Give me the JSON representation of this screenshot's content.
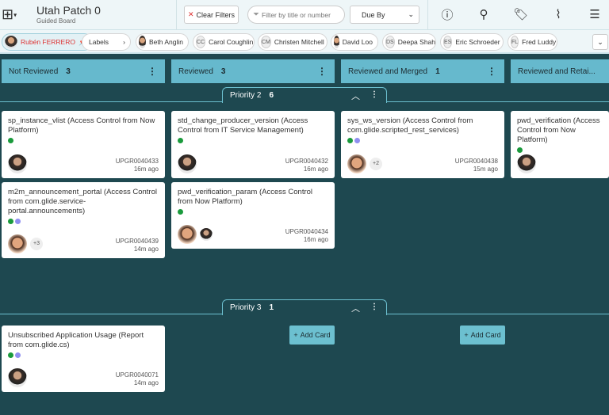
{
  "header": {
    "title": "Utah Patch 0",
    "subtitle": "Guided Board",
    "clear_filters": "Clear Filters",
    "filter_placeholder": "Filter by title or number",
    "sort_value": "Due By",
    "icons": [
      "info-icon",
      "user-icon",
      "tag-icon",
      "activity-icon",
      "sliders-icon"
    ]
  },
  "filters": {
    "current_user": "Rubén FERRERO",
    "labels": "Labels",
    "people": [
      {
        "initials": "",
        "name": "Beth Anglin",
        "photo": true
      },
      {
        "initials": "CC",
        "name": "Carol Coughlin"
      },
      {
        "initials": "CM",
        "name": "Christen Mitchell"
      },
      {
        "initials": "",
        "name": "David Loo",
        "photo": true
      },
      {
        "initials": "DS",
        "name": "Deepa Shah"
      },
      {
        "initials": "ES",
        "name": "Eric Schroeder"
      },
      {
        "initials": "FL",
        "name": "Fred Luddy"
      }
    ]
  },
  "columns": [
    {
      "name": "Not Reviewed",
      "count": "3"
    },
    {
      "name": "Reviewed",
      "count": "3"
    },
    {
      "name": "Reviewed and Merged",
      "count": "1"
    },
    {
      "name": "Reviewed and Retai...",
      "count": ""
    }
  ],
  "lanes": [
    {
      "name": "Priority 2",
      "count": "6",
      "cards": [
        {
          "title": "sp_instance_vlist (Access Control from Now Platform)",
          "dots": [
            "#1a9a3c"
          ],
          "number": "UPGR0040433",
          "time": "16m ago",
          "avatars": [
            "m"
          ],
          "more": ""
        },
        {
          "title": "std_change_producer_version (Access Control from IT Service Management)",
          "dots": [
            "#1a9a3c"
          ],
          "number": "UPGR0040432",
          "time": "16m ago",
          "avatars": [
            "m"
          ],
          "more": ""
        },
        {
          "title": "sys_ws_version (Access Control from com.glide.scripted_rest_services)",
          "dots": [
            "#1a9a3c",
            "#8f8ff0"
          ],
          "number": "UPGR0040438",
          "time": "15m ago",
          "avatars": [
            "f"
          ],
          "more": "+2"
        },
        {
          "title": "pwd_verification (Access Control from Now Platform)",
          "dots": [
            "#1a9a3c"
          ],
          "number": "",
          "time": "",
          "avatars": [
            "m"
          ],
          "more": ""
        },
        {
          "title": "m2m_announcement_portal (Access Control from com.glide.service-portal.announcements)",
          "dots": [
            "#1a9a3c",
            "#8f8ff0"
          ],
          "number": "UPGR0040439",
          "time": "14m ago",
          "avatars": [
            "f"
          ],
          "more": "+3"
        },
        {
          "title": "pwd_verification_param (Access Control from Now Platform)",
          "dots": [
            "#1a9a3c"
          ],
          "number": "UPGR0040434",
          "time": "16m ago",
          "avatars": [
            "f",
            "m"
          ],
          "more": ""
        }
      ]
    },
    {
      "name": "Priority 3",
      "count": "1",
      "cards": [
        {
          "title": "Unsubscribed Application Usage (Report from com.glide.cs)",
          "dots": [
            "#1a9a3c",
            "#8f8ff0"
          ],
          "number": "UPGR0040071",
          "time": "14m ago",
          "avatars": [
            "m"
          ],
          "more": ""
        }
      ]
    }
  ],
  "add_card": "Add Card",
  "colors": {
    "board": "#1e4850",
    "column_header": "#66b9cd",
    "accent": "#6cc0d0"
  }
}
